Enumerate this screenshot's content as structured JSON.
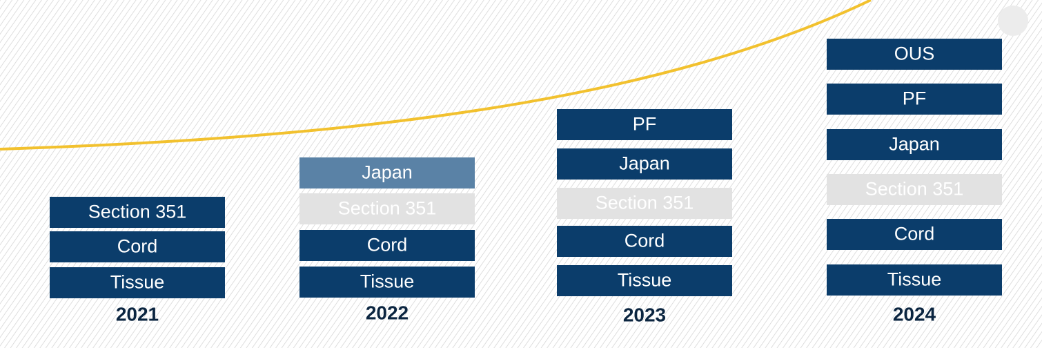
{
  "columns": [
    {
      "year": "2021",
      "blocks": [
        {
          "label": "Section 351",
          "color": "#0b3d6b"
        },
        {
          "label": "Cord",
          "color": "#0b3d6b"
        },
        {
          "label": "Tissue",
          "color": "#0b3d6b"
        }
      ]
    },
    {
      "year": "2022",
      "blocks": [
        {
          "label": "Japan",
          "color": "#5a82a6"
        },
        {
          "label": "Section 351",
          "color": "#e2e2e2"
        },
        {
          "label": "Cord",
          "color": "#0b3d6b"
        },
        {
          "label": "Tissue",
          "color": "#0b3d6b"
        }
      ]
    },
    {
      "year": "2023",
      "blocks": [
        {
          "label": "PF",
          "color": "#0b3d6b"
        },
        {
          "label": "Japan",
          "color": "#0b3d6b"
        },
        {
          "label": "Section 351",
          "color": "#e2e2e2"
        },
        {
          "label": "Cord",
          "color": "#0b3d6b"
        },
        {
          "label": "Tissue",
          "color": "#0b3d6b"
        }
      ]
    },
    {
      "year": "2024",
      "blocks": [
        {
          "label": "OUS",
          "color": "#0b3d6b"
        },
        {
          "label": "PF",
          "color": "#0b3d6b"
        },
        {
          "label": "Japan",
          "color": "#0b3d6b"
        },
        {
          "label": "Section 351",
          "color": "#e2e2e2"
        },
        {
          "label": "Cord",
          "color": "#0b3d6b"
        },
        {
          "label": "Tissue",
          "color": "#0b3d6b"
        }
      ]
    }
  ]
}
